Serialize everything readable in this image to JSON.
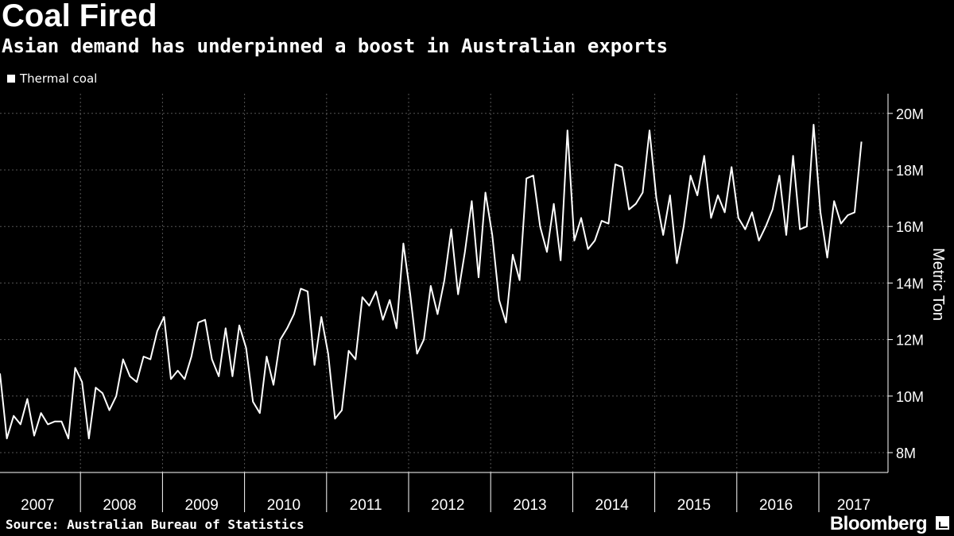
{
  "header": {
    "title": "Coal Fired",
    "subtitle": "Asian demand has underpinned a boost in Australian exports"
  },
  "footer": {
    "source": "Source: Australian Bureau of Statistics",
    "brand": "Bloomberg"
  },
  "colors": {
    "background": "#000000",
    "line": "#ffffff",
    "grid": "#555555"
  },
  "chart_data": {
    "type": "line",
    "title": "Coal Fired",
    "subtitle": "Asian demand has underpinned a boost in Australian exports",
    "xlabel": "",
    "ylabel": "Metric Ton",
    "ylim": [
      7.2,
      21.0
    ],
    "yticks": [
      8,
      10,
      12,
      14,
      16,
      18,
      20
    ],
    "ytick_labels": [
      "8M",
      "10M",
      "12M",
      "14M",
      "16M",
      "18M",
      "20M"
    ],
    "x_start": "2007-01",
    "x_frequency": "monthly",
    "xtick_labels": [
      "2007",
      "2008",
      "2009",
      "2010",
      "2011",
      "2012",
      "2013",
      "2014",
      "2015",
      "2016",
      "2017"
    ],
    "grid": true,
    "legend_position": "top-left",
    "units": "million metric tons",
    "series": [
      {
        "name": "Thermal coal",
        "values": [
          10.8,
          8.5,
          9.3,
          9.0,
          9.9,
          8.6,
          9.4,
          9.0,
          9.1,
          9.1,
          8.5,
          11.0,
          10.5,
          8.5,
          10.3,
          10.1,
          9.5,
          10.0,
          11.3,
          10.7,
          10.5,
          11.4,
          11.3,
          12.3,
          12.8,
          10.6,
          10.9,
          10.6,
          11.4,
          12.6,
          12.7,
          11.3,
          10.7,
          12.4,
          10.7,
          12.5,
          11.7,
          9.8,
          9.4,
          11.4,
          10.4,
          12.0,
          12.4,
          12.9,
          13.8,
          13.7,
          11.1,
          12.8,
          11.5,
          9.2,
          9.5,
          11.6,
          11.3,
          13.5,
          13.2,
          13.7,
          12.7,
          13.4,
          12.4,
          15.4,
          13.6,
          11.5,
          12.0,
          13.9,
          12.9,
          14.1,
          15.9,
          13.6,
          15.1,
          16.9,
          14.2,
          17.2,
          15.7,
          13.4,
          12.6,
          15.0,
          14.1,
          17.7,
          17.8,
          16.0,
          15.1,
          16.8,
          14.8,
          19.4,
          15.5,
          16.3,
          15.2,
          15.5,
          16.2,
          16.1,
          18.2,
          18.1,
          16.6,
          16.8,
          17.2,
          19.4,
          17.0,
          15.7,
          17.1,
          14.7,
          16.0,
          17.8,
          17.1,
          18.5,
          16.3,
          17.1,
          16.5,
          18.1,
          16.3,
          15.9,
          16.5,
          15.5,
          16.0,
          16.6,
          17.8,
          15.7,
          18.5,
          15.9,
          16.0,
          19.6,
          16.5,
          14.9,
          16.9,
          16.1,
          16.4,
          16.5,
          19.0
        ]
      }
    ]
  }
}
